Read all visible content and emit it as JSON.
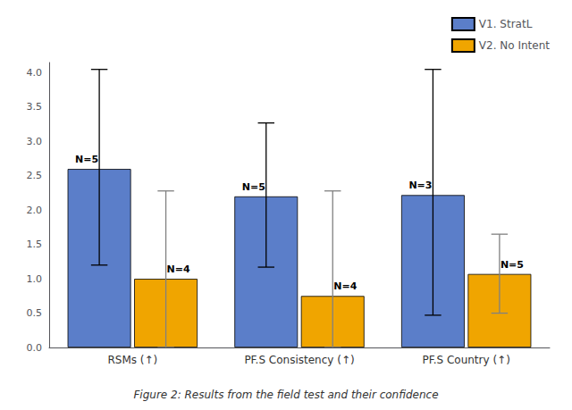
{
  "chart_data": {
    "type": "bar",
    "title": "Figure 2: Results from the field test and their confidence",
    "categories": [
      "RSMs (↑)",
      "PF.S Consistency (↑)",
      "PF.S Country (↑)"
    ],
    "series": [
      {
        "name": "V1. StratL",
        "color": "#5b7ec9",
        "values": [
          2.6,
          2.2,
          2.22
        ],
        "n_labels": [
          "N=5",
          "N=5",
          "N=3"
        ],
        "ci_low": [
          1.2,
          1.17,
          0.47
        ],
        "ci_high": [
          4.05,
          3.27,
          4.05
        ],
        "ci_color": "black"
      },
      {
        "name": "V2. No Intent",
        "color": "#f0a500",
        "values": [
          1.0,
          0.75,
          1.07
        ],
        "n_labels": [
          "N=4",
          "N=4",
          "N=5"
        ],
        "ci_low": [
          0.0,
          0.0,
          0.5
        ],
        "ci_high": [
          2.28,
          2.28,
          1.65
        ],
        "ci_color": "gray"
      }
    ],
    "ylim": [
      0,
      4.15
    ],
    "yticks": [
      {
        "value": 0,
        "label": "0.0"
      },
      0.5,
      {
        "value": 1,
        "label": "1.0"
      },
      1.5,
      {
        "value": 2,
        "label": "2.0"
      },
      2.5,
      {
        "value": 3,
        "label": "3.0"
      },
      3.5,
      {
        "value": 4,
        "label": "4.0"
      }
    ],
    "grid": false,
    "legend": "upper right"
  }
}
